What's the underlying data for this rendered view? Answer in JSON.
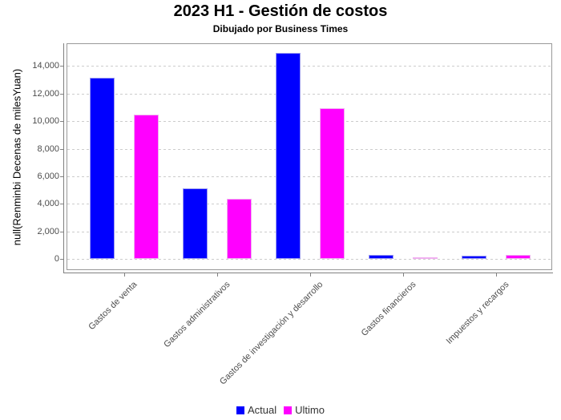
{
  "header": {
    "title": "2023 H1 - Gestión de costos",
    "subtitle": "Dibujado por Business Times"
  },
  "chart_data": {
    "type": "bar",
    "title": "2023 H1 - Gestión de costos",
    "subtitle": "Dibujado por Business Times",
    "xlabel": "",
    "ylabel": "null(Renminbi Decenas de milesYuan)",
    "categories": [
      "Gastos de venta",
      "Gastos administrativos",
      "Gastos de investigación y desarrollo",
      "Gastos financieros",
      "Impuestos y recargos"
    ],
    "series": [
      {
        "name": "Actual",
        "color": "#0000ff",
        "values": [
          13170,
          5100,
          14940,
          290,
          220
        ]
      },
      {
        "name": "Ultimo",
        "color": "#ff00ff",
        "values": [
          10480,
          4370,
          10950,
          60,
          270
        ]
      }
    ],
    "y_ticks": [
      0,
      2000,
      4000,
      6000,
      8000,
      10000,
      12000,
      14000
    ],
    "y_tick_labels": [
      "0",
      "2,000",
      "4,000",
      "6,000",
      "8,000",
      "10,000",
      "12,000",
      "14,000"
    ],
    "ylim": [
      -760,
      15600
    ],
    "grid": "horizontal-dashed",
    "legend_position": "bottom"
  },
  "legend": {
    "items": [
      {
        "label": "Actual",
        "color": "#0000ff"
      },
      {
        "label": "Ultimo",
        "color": "#ff00ff"
      }
    ]
  },
  "colors": {
    "actual": "#0000ff",
    "ultimo": "#ff00ff",
    "gridline": "#cccccc",
    "plot_frame": "#999999",
    "axis_line": "#808080",
    "tick_label": "#4d4d4d"
  }
}
